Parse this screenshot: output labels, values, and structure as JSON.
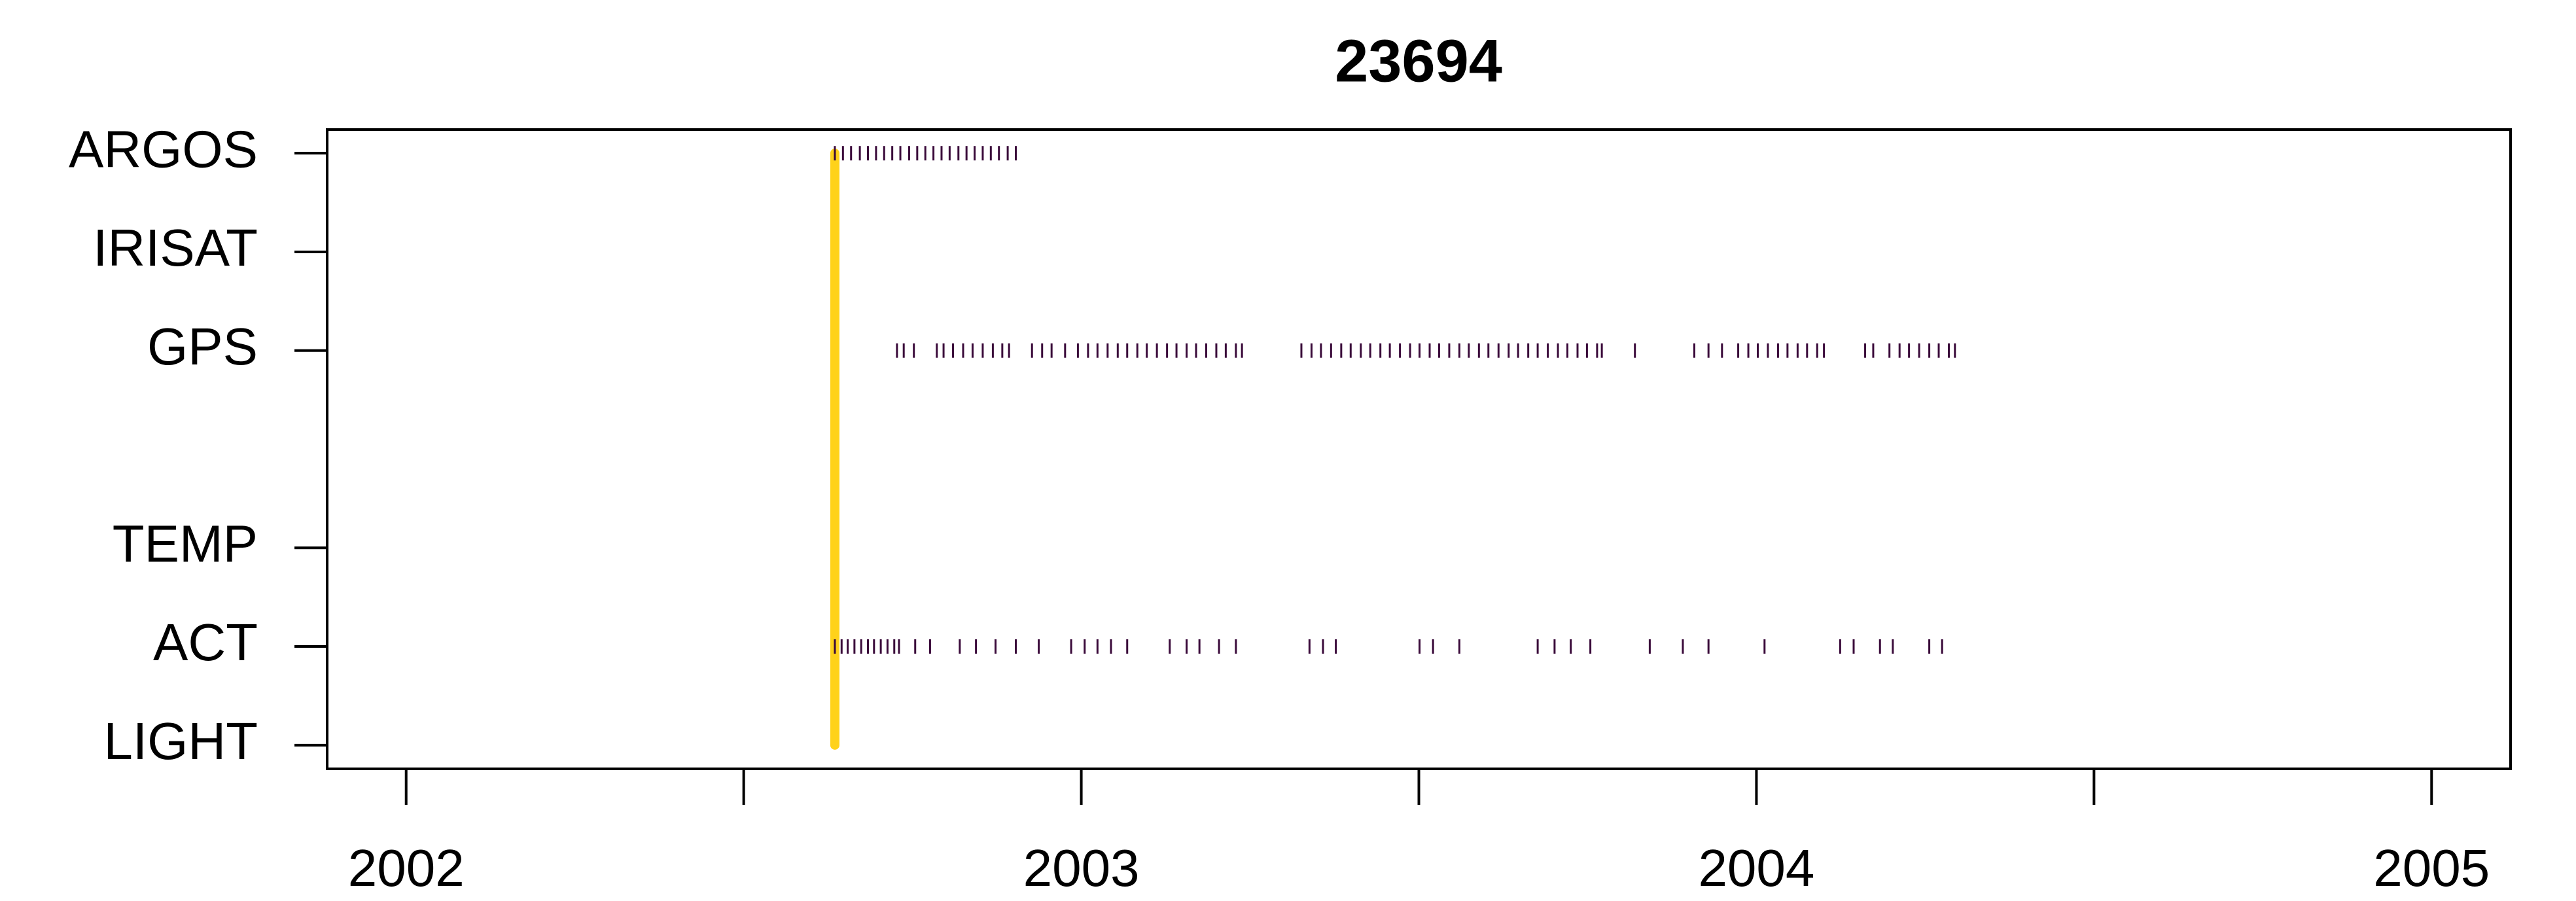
{
  "chart_data": {
    "type": "strip",
    "title": "23694",
    "categories": [
      "LIGHT",
      "ACT",
      "TEMP",
      null,
      "GPS",
      "IRISAT",
      "ARGOS"
    ],
    "values": [
      [],
      [
        2002.635,
        2002.645,
        2002.654,
        2002.664,
        2002.674,
        2002.684,
        2002.693,
        2002.703,
        2002.713,
        2002.723,
        2002.73,
        2002.754,
        2002.776,
        2002.82,
        2002.844,
        2002.873,
        2002.903,
        2002.937,
        2002.985,
        2003.005,
        2003.024,
        2003.044,
        2003.068,
        2003.131,
        2003.156,
        2003.175,
        2003.204,
        2003.229,
        2003.338,
        2003.358,
        2003.377,
        2003.501,
        2003.521,
        2003.56,
        2003.676,
        2003.701,
        2003.725,
        2003.754,
        2003.842,
        2003.891,
        2003.929,
        2004.012,
        2004.124,
        2004.144,
        2004.183,
        2004.202,
        2004.256,
        2004.275
      ],
      [],
      [],
      [
        2002.727,
        2002.737,
        2002.752,
        2002.786,
        2002.796,
        2002.81,
        2002.825,
        2002.839,
        2002.854,
        2002.869,
        2002.883,
        2002.893,
        2002.927,
        2002.942,
        2002.956,
        2002.976,
        2002.995,
        2003.01,
        2003.024,
        2003.039,
        2003.054,
        2003.068,
        2003.083,
        2003.097,
        2003.112,
        2003.127,
        2003.141,
        2003.156,
        2003.17,
        2003.185,
        2003.2,
        2003.214,
        2003.229,
        2003.238,
        2003.326,
        2003.341,
        2003.355,
        2003.37,
        2003.385,
        2003.399,
        2003.414,
        2003.428,
        2003.443,
        2003.457,
        2003.472,
        2003.487,
        2003.501,
        2003.516,
        2003.53,
        2003.545,
        2003.56,
        2003.574,
        2003.589,
        2003.603,
        2003.618,
        2003.633,
        2003.647,
        2003.662,
        2003.676,
        2003.691,
        2003.706,
        2003.72,
        2003.735,
        2003.749,
        2003.764,
        2003.771,
        2003.82,
        2003.908,
        2003.929,
        2003.949,
        2003.973,
        2003.988,
        2004.002,
        2004.017,
        2004.032,
        2004.046,
        2004.061,
        2004.075,
        2004.09,
        2004.1,
        2004.161,
        2004.173,
        2004.197,
        2004.212,
        2004.226,
        2004.241,
        2004.256,
        2004.27,
        2004.285,
        2004.294
      ],
      [],
      [
        2002.635,
        2002.647,
        2002.659,
        2002.672,
        2002.684,
        2002.696,
        2002.708,
        2002.72,
        2002.732,
        2002.745,
        2002.757,
        2002.769,
        2002.781,
        2002.793,
        2002.805,
        2002.818,
        2002.83,
        2002.842,
        2002.854,
        2002.866,
        2002.878,
        2002.891,
        2002.903
      ]
    ],
    "color": "#3a0a3a",
    "deployment": 2002.635,
    "deployment_color": "#ffd21a",
    "xlim": [
      2001.883,
      2005.117
    ],
    "xticks": [
      2002,
      2003,
      2004,
      2005
    ],
    "xminor": [
      2002.5,
      2003.5,
      2004.5
    ],
    "ylim": [
      0.76,
      7.24
    ]
  }
}
